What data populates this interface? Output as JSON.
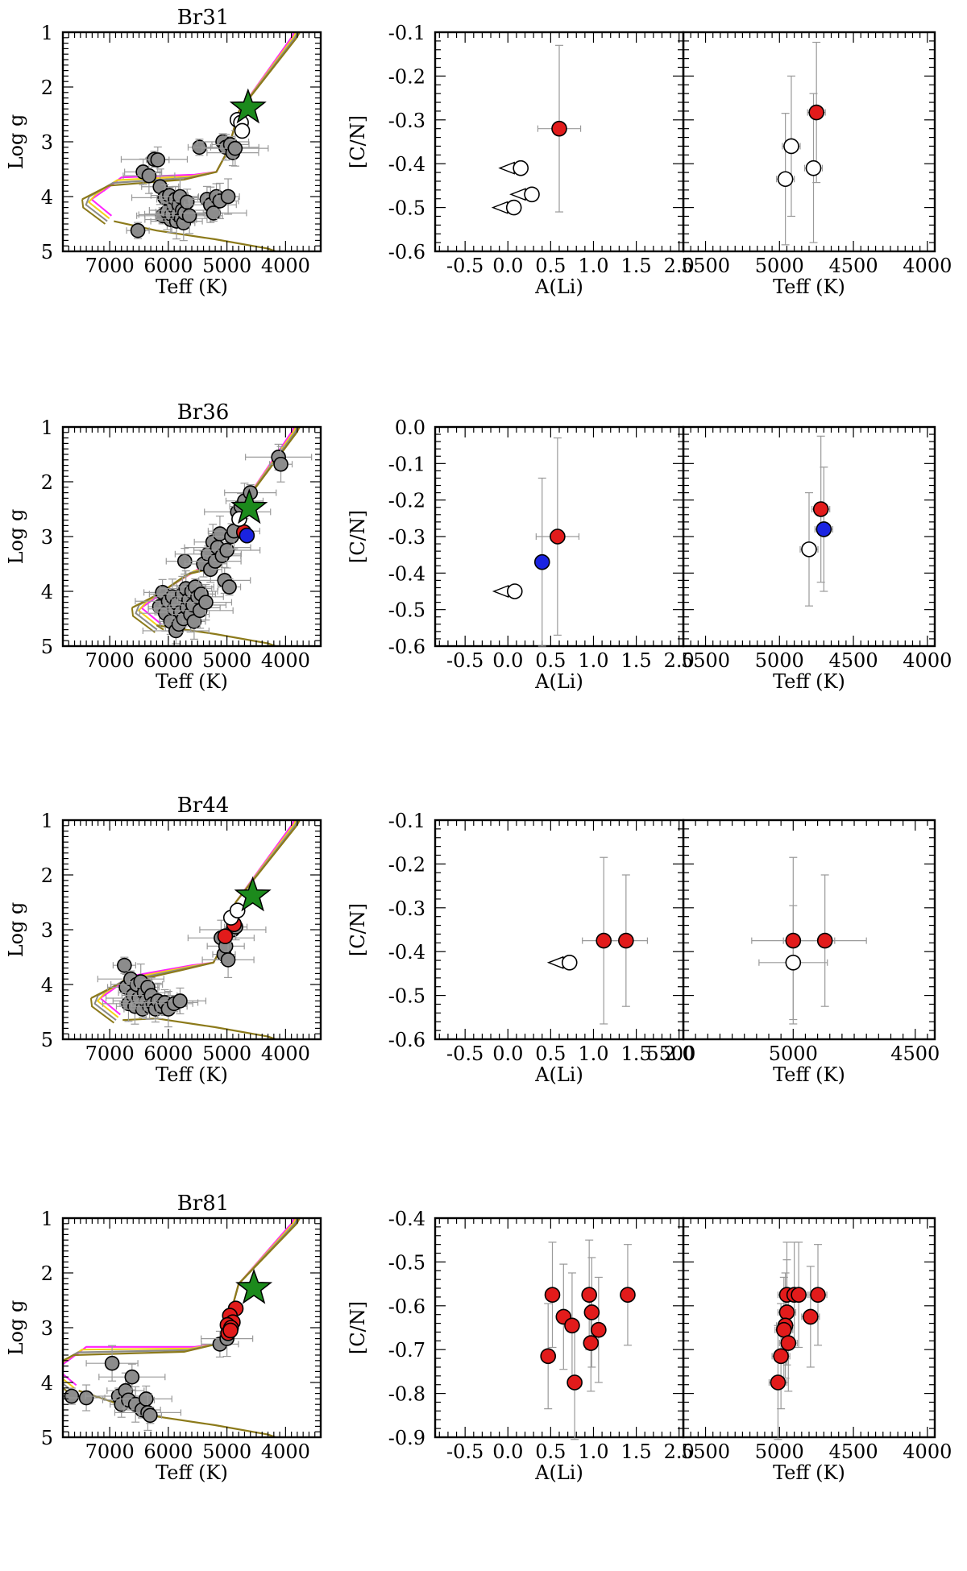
{
  "colors": {
    "giant_fill": "#e21b1b",
    "blue_fill": "#1a23e0",
    "ms_fill": "#8c8c8c",
    "open_fill": "#ffffff",
    "star_fill": "#1c8a1c",
    "errbar": "#9a9a9a",
    "iso_magenta": "#ff22ff",
    "iso_yellow": "#f2d21a",
    "iso_gray": "#8a8a8a",
    "iso_olive": "#8c7a1a"
  },
  "chart_data": [
    {
      "type": "scatter",
      "title": "Br31",
      "hrd": {
        "xlabel": "Teff (K)",
        "ylabel": "Log g",
        "xlim": [
          7800,
          3400
        ],
        "ylim": [
          1,
          5
        ],
        "xticks": [
          7000,
          6000,
          5000,
          4000
        ],
        "yticks": [
          1,
          2,
          3,
          4,
          5
        ],
        "star": [
          4640,
          2.38
        ],
        "ms": [
          [
            6520,
            4.62
          ],
          [
            6430,
            3.55
          ],
          [
            6330,
            3.62
          ],
          [
            6240,
            3.32
          ],
          [
            6180,
            3.33
          ],
          [
            6140,
            3.82
          ],
          [
            6100,
            4.35
          ],
          [
            6060,
            4.02
          ],
          [
            6020,
            4.28
          ],
          [
            5980,
            3.98
          ],
          [
            5960,
            4.42
          ],
          [
            5940,
            4.33
          ],
          [
            5900,
            4.18
          ],
          [
            5880,
            4.05
          ],
          [
            5860,
            4.45
          ],
          [
            5840,
            4.32
          ],
          [
            5820,
            4.15
          ],
          [
            5800,
            4.0
          ],
          [
            5780,
            4.4
          ],
          [
            5760,
            4.25
          ],
          [
            5740,
            4.48
          ],
          [
            5720,
            4.3
          ],
          [
            5680,
            4.1
          ],
          [
            5640,
            4.35
          ],
          [
            5470,
            3.1
          ],
          [
            5340,
            4.05
          ],
          [
            5280,
            4.15
          ],
          [
            5230,
            4.3
          ],
          [
            5180,
            4.0
          ],
          [
            5120,
            4.08
          ],
          [
            5070,
            3.0
          ],
          [
            5020,
            3.1
          ],
          [
            4980,
            4.0
          ],
          [
            4940,
            3.05
          ],
          [
            4900,
            3.2
          ],
          [
            4860,
            3.12
          ]
        ],
        "giants": [],
        "blue": [],
        "open": [
          [
            4820,
            2.6
          ],
          [
            4760,
            2.65
          ],
          [
            4740,
            2.8
          ]
        ],
        "isochrone_turnoff": [
          7050,
          3.9
        ],
        "isochrone_rgb_base": [
          5100,
          3.55
        ]
      },
      "li": {
        "xlabel": "A(Li)",
        "ylabel": "[C/N]",
        "xlim": [
          -0.85,
          2.05
        ],
        "ylim": [
          -0.6,
          -0.1
        ],
        "xticks": [
          -0.5,
          0.0,
          0.5,
          1.0,
          1.5,
          2.0
        ],
        "xtick_labels": [
          "-0.5",
          "0.0",
          "0.5",
          "1.0",
          "1.5",
          "2.0"
        ],
        "yticks": [
          -0.6,
          -0.5,
          -0.4,
          -0.3,
          -0.2,
          -0.1
        ],
        "ytick_labels": [
          "-0.6",
          "-0.5",
          "-0.4",
          "-0.3",
          "-0.2",
          "-0.1"
        ],
        "giants": [
          [
            0.6,
            -0.32,
            0.19
          ]
        ],
        "blue": [],
        "open_limits": [
          [
            0.15,
            -0.41
          ],
          [
            0.28,
            -0.47
          ],
          [
            0.07,
            -0.5
          ]
        ]
      },
      "teff": {
        "xlabel": "Teff (K)",
        "xlim": [
          5650,
          3950
        ],
        "xticks": [
          5500,
          5000,
          4500,
          4000
        ],
        "xtick_labels": [
          "5500",
          "5000",
          "4500",
          "4000"
        ],
        "giants": [
          [
            4750,
            -0.283,
            0.16
          ]
        ],
        "blue": [],
        "open": [
          [
            4920,
            -0.36,
            0.16
          ],
          [
            4770,
            -0.41,
            0.17
          ],
          [
            4960,
            -0.435,
            0.15
          ]
        ]
      }
    },
    {
      "type": "scatter",
      "title": "Br36",
      "hrd": {
        "xlabel": "Teff (K)",
        "ylabel": "Log g",
        "xlim": [
          7800,
          3400
        ],
        "ylim": [
          1,
          5
        ],
        "xticks": [
          7000,
          6000,
          5000,
          4000
        ],
        "yticks": [
          1,
          2,
          3,
          4,
          5
        ],
        "star": [
          4620,
          2.48
        ],
        "ms": [
          [
            6150,
            4.28
          ],
          [
            6100,
            4.02
          ],
          [
            6050,
            4.4
          ],
          [
            6000,
            4.18
          ],
          [
            5960,
            4.55
          ],
          [
            5930,
            4.1
          ],
          [
            5900,
            4.32
          ],
          [
            5870,
            4.72
          ],
          [
            5850,
            4.22
          ],
          [
            5820,
            4.6
          ],
          [
            5790,
            4.38
          ],
          [
            5760,
            4.05
          ],
          [
            5740,
            4.5
          ],
          [
            5720,
            3.45
          ],
          [
            5700,
            3.95
          ],
          [
            5680,
            4.3
          ],
          [
            5650,
            4.15
          ],
          [
            5620,
            4.42
          ],
          [
            5600,
            4.0
          ],
          [
            5580,
            4.25
          ],
          [
            5560,
            4.55
          ],
          [
            5540,
            3.92
          ],
          [
            5500,
            4.1
          ],
          [
            5460,
            4.35
          ],
          [
            5440,
            4.05
          ],
          [
            5400,
            3.5
          ],
          [
            5360,
            4.2
          ],
          [
            5320,
            3.32
          ],
          [
            5280,
            3.6
          ],
          [
            5240,
            3.1
          ],
          [
            5200,
            3.45
          ],
          [
            5160,
            3.2
          ],
          [
            5120,
            2.95
          ],
          [
            5080,
            3.35
          ],
          [
            5040,
            3.8
          ],
          [
            5000,
            3.25
          ],
          [
            4960,
            3.92
          ],
          [
            4920,
            3.0
          ],
          [
            4880,
            2.9
          ],
          [
            4820,
            2.55
          ],
          [
            4760,
            2.45
          ],
          [
            4700,
            2.35
          ],
          [
            4600,
            2.2
          ],
          [
            4120,
            1.55
          ],
          [
            4080,
            1.68
          ]
        ],
        "giants": [
          [
            4710,
            2.92
          ]
        ],
        "blue": [
          [
            4660,
            2.98
          ]
        ],
        "open": [
          [
            4790,
            2.68
          ]
        ],
        "isochrone_turnoff": [
          6200,
          4.15
        ],
        "isochrone_rgb_base": [
          5050,
          3.55
        ]
      },
      "li": {
        "xlabel": "A(Li)",
        "ylabel": "[C/N]",
        "xlim": [
          -0.85,
          2.05
        ],
        "ylim": [
          -0.6,
          0.0
        ],
        "xticks": [
          -0.5,
          0.0,
          0.5,
          1.0,
          1.5,
          2.0
        ],
        "xtick_labels": [
          "-0.5",
          "0.0",
          "0.5",
          "1.0",
          "1.5",
          "2.0"
        ],
        "yticks": [
          -0.6,
          -0.5,
          -0.4,
          -0.3,
          -0.2,
          -0.1,
          0.0
        ],
        "ytick_labels": [
          "-0.6",
          "-0.5",
          "-0.4",
          "-0.3",
          "-0.2",
          "-0.1",
          "0.0"
        ],
        "giants": [
          [
            0.58,
            -0.3,
            0.27
          ]
        ],
        "blue": [
          [
            0.4,
            -0.37,
            0.23
          ]
        ],
        "open_limits": [
          [
            0.08,
            -0.45
          ]
        ]
      },
      "teff": {
        "xlabel": "Teff (K)",
        "xlim": [
          5650,
          3950
        ],
        "xticks": [
          5500,
          5000,
          4500,
          4000
        ],
        "xtick_labels": [
          "5500",
          "5000",
          "4500",
          "4000"
        ],
        "giants": [
          [
            4720,
            -0.225,
            0.2
          ]
        ],
        "blue": [
          [
            4700,
            -0.28,
            0.17
          ]
        ],
        "open": [
          [
            4800,
            -0.335,
            0.155
          ]
        ]
      }
    },
    {
      "type": "scatter",
      "title": "Br44",
      "hrd": {
        "xlabel": "Teff (K)",
        "ylabel": "Log g",
        "xlim": [
          7800,
          3400
        ],
        "ylim": [
          1,
          5
        ],
        "xticks": [
          7000,
          6000,
          5000,
          4000
        ],
        "yticks": [
          1,
          2,
          3,
          4,
          5
        ],
        "star": [
          4560,
          2.38
        ],
        "ms": [
          [
            6750,
            3.65
          ],
          [
            6720,
            4.05
          ],
          [
            6680,
            4.35
          ],
          [
            6640,
            3.9
          ],
          [
            6600,
            4.2
          ],
          [
            6570,
            4.4
          ],
          [
            6540,
            4.0
          ],
          [
            6500,
            4.25
          ],
          [
            6470,
            3.95
          ],
          [
            6440,
            4.45
          ],
          [
            6410,
            4.15
          ],
          [
            6380,
            4.3
          ],
          [
            6350,
            4.05
          ],
          [
            6320,
            4.4
          ],
          [
            6290,
            4.2
          ],
          [
            6260,
            4.35
          ],
          [
            6220,
            4.45
          ],
          [
            6180,
            4.3
          ],
          [
            6120,
            4.4
          ],
          [
            6060,
            4.33
          ],
          [
            6000,
            4.45
          ],
          [
            5900,
            4.35
          ],
          [
            5800,
            4.3
          ],
          [
            5100,
            3.15
          ],
          [
            5050,
            3.45
          ],
          [
            5020,
            3.3
          ],
          [
            4980,
            3.55
          ],
          [
            4900,
            3.0
          ],
          [
            4850,
            2.95
          ]
        ],
        "giants": [
          [
            4880,
            2.9
          ],
          [
            5030,
            3.12
          ]
        ],
        "blue": [],
        "open": [
          [
            4930,
            2.78
          ],
          [
            4820,
            2.65
          ]
        ],
        "isochrone_turnoff": [
          6900,
          4.1
        ],
        "isochrone_rgb_base": [
          5150,
          3.6
        ]
      },
      "li": {
        "xlabel": "A(Li)",
        "ylabel": "[C/N]",
        "xlim": [
          -0.85,
          2.05
        ],
        "ylim": [
          -0.6,
          -0.1
        ],
        "xticks": [
          -0.5,
          0.0,
          0.5,
          1.0,
          1.5,
          2.0
        ],
        "xtick_labels": [
          "-0.5",
          "0.0",
          "0.5",
          "1.0",
          "1.5",
          "2.0"
        ],
        "yticks": [
          -0.6,
          -0.5,
          -0.4,
          -0.3,
          -0.2,
          -0.1
        ],
        "ytick_labels": [
          "-0.6",
          "-0.5",
          "-0.4",
          "-0.3",
          "-0.2",
          "-0.1"
        ],
        "giants": [
          [
            1.12,
            -0.375,
            0.19
          ],
          [
            1.38,
            -0.375,
            0.15
          ]
        ],
        "blue": [],
        "open_limits": [
          [
            0.72,
            -0.425
          ]
        ]
      },
      "teff": {
        "xlabel": "Teff (K)",
        "xlim": [
          5450,
          4420
        ],
        "xticks": [
          5500,
          5000,
          4500
        ],
        "xtick_labels": [
          "5500",
          "5000",
          "4500"
        ],
        "giants": [
          [
            5000,
            -0.375,
            0.19,
            170
          ],
          [
            4870,
            -0.375,
            0.15,
            170
          ]
        ],
        "blue": [],
        "open": [
          [
            5000,
            -0.425,
            0.13,
            140
          ]
        ]
      }
    },
    {
      "type": "scatter",
      "title": "Br81",
      "hrd": {
        "xlabel": "Teff (K)",
        "ylabel": "Log g",
        "xlim": [
          7800,
          3400
        ],
        "ylim": [
          1,
          5
        ],
        "xticks": [
          7000,
          6000,
          5000,
          4000
        ],
        "yticks": [
          1,
          2,
          3,
          4,
          5
        ],
        "star": [
          4540,
          2.28
        ],
        "ms": [
          [
            7650,
            4.25
          ],
          [
            7400,
            4.28
          ],
          [
            6960,
            3.65
          ],
          [
            6850,
            4.25
          ],
          [
            6800,
            4.4
          ],
          [
            6730,
            4.15
          ],
          [
            6680,
            4.32
          ],
          [
            6620,
            3.9
          ],
          [
            6560,
            4.4
          ],
          [
            6450,
            4.5
          ],
          [
            6380,
            4.3
          ],
          [
            6350,
            4.55
          ],
          [
            6310,
            4.6
          ],
          [
            5120,
            3.3
          ],
          [
            5000,
            3.2
          ]
        ],
        "giants": [
          [
            4850,
            2.65
          ],
          [
            4950,
            2.78
          ],
          [
            4900,
            2.9
          ],
          [
            4990,
            2.95
          ],
          [
            4930,
            3.0
          ],
          [
            4980,
            3.1
          ],
          [
            4940,
            3.05
          ]
        ],
        "blue": [],
        "open": [],
        "isochrone_turnoff": [
          7650,
          3.6
        ],
        "isochrone_rgb_base": [
          5100,
          3.3
        ]
      },
      "li": {
        "xlabel": "A(Li)",
        "ylabel": "[C/N]",
        "xlim": [
          -0.85,
          2.05
        ],
        "ylim": [
          -0.9,
          -0.4
        ],
        "xticks": [
          -0.5,
          0.0,
          0.5,
          1.0,
          1.5,
          2.0
        ],
        "xtick_labels": [
          "-0.5",
          "0.0",
          "0.5",
          "1.0",
          "1.5",
          "2.0"
        ],
        "yticks": [
          -0.9,
          -0.8,
          -0.7,
          -0.6,
          -0.5,
          -0.4
        ],
        "ytick_labels": [
          "-0.9",
          "-0.8",
          "-0.7",
          "-0.6",
          "-0.5",
          "-0.4"
        ],
        "giants": [
          [
            0.52,
            -0.575,
            0.12
          ],
          [
            0.65,
            -0.625,
            0.12
          ],
          [
            0.75,
            -0.645,
            0.12
          ],
          [
            0.47,
            -0.715,
            0.12
          ],
          [
            0.78,
            -0.775,
            0.13
          ],
          [
            0.95,
            -0.575,
            0.125
          ],
          [
            0.98,
            -0.615,
            0.125
          ],
          [
            1.06,
            -0.655,
            0.12
          ],
          [
            0.97,
            -0.685,
            0.11
          ],
          [
            1.4,
            -0.575,
            0.115
          ]
        ],
        "blue": [],
        "open_limits": []
      },
      "teff": {
        "xlabel": "Teff (K)",
        "xlim": [
          5650,
          3950
        ],
        "xticks": [
          5500,
          5000,
          4500,
          4000
        ],
        "xtick_labels": [
          "5500",
          "5000",
          "4500",
          "4000"
        ],
        "giants": [
          [
            4950,
            -0.575,
            0.12
          ],
          [
            4900,
            -0.575,
            0.12
          ],
          [
            4870,
            -0.575,
            0.12
          ],
          [
            4740,
            -0.575,
            0.115
          ],
          [
            4950,
            -0.615,
            0.12
          ],
          [
            4790,
            -0.625,
            0.115
          ],
          [
            4960,
            -0.645,
            0.12
          ],
          [
            4970,
            -0.655,
            0.12
          ],
          [
            4940,
            -0.685,
            0.11
          ],
          [
            4990,
            -0.715,
            0.12
          ],
          [
            5010,
            -0.775,
            0.13
          ]
        ],
        "blue": [],
        "open": []
      }
    }
  ]
}
